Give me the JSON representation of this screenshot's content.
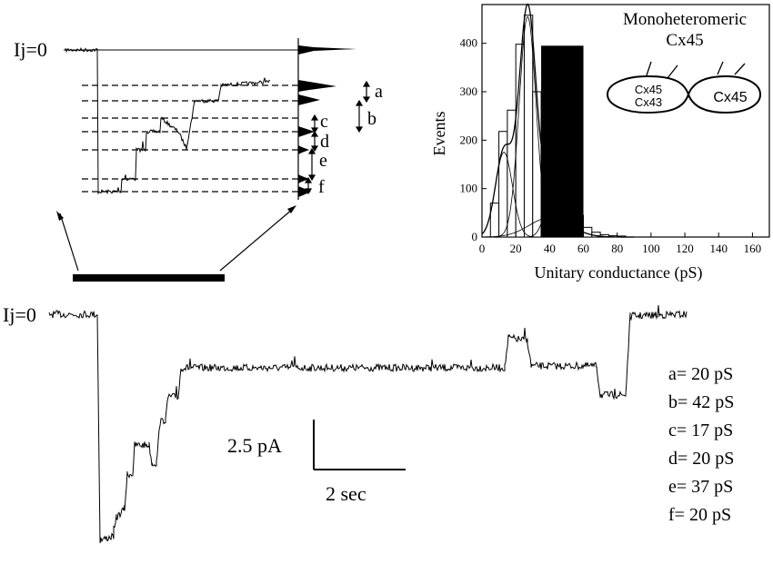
{
  "colors": {
    "ink": "#000000",
    "background": "#ffffff"
  },
  "chart_data": [
    {
      "type": "line",
      "panel": "zoomed-trace",
      "baseline_label": "Ij=0",
      "level_markers": [
        "a",
        "b",
        "c",
        "d",
        "e",
        "f"
      ]
    },
    {
      "type": "bar",
      "panel": "conductance-histogram",
      "xlabel": "Unitary conductance (pS)",
      "ylabel": "Events",
      "xlim": [
        0,
        170
      ],
      "ylim": [
        0,
        480
      ],
      "xticks": [
        "0",
        "20",
        "40",
        "60",
        "80",
        "100",
        "120",
        "140",
        "160"
      ],
      "yticks": [
        "0",
        "100",
        "200",
        "300",
        "400"
      ],
      "bin_width": 5,
      "bin_starts": [
        5,
        10,
        15,
        20,
        25,
        30,
        35,
        40,
        45,
        50,
        55,
        60,
        65,
        70,
        75,
        80
      ],
      "counts": [
        70,
        218,
        262,
        398,
        458,
        300,
        210,
        145,
        100,
        80,
        45,
        20,
        10,
        5,
        3,
        2
      ],
      "highlight_block": {
        "x_from": 35,
        "x_to": 60,
        "y": 395
      },
      "inset": {
        "title_line1": "Monoheteromeric",
        "title_line2": "Cx45",
        "left_cell_line1": "Cx45",
        "left_cell_line2": "Cx43",
        "right_cell": "Cx45"
      }
    },
    {
      "type": "line",
      "panel": "full-trace",
      "baseline_label": "Ij=0",
      "scale_bar": {
        "current_label": "2.5 pA",
        "time_label": "2 sec"
      },
      "conductances": [
        {
          "label": "a",
          "text": "a= 20 pS",
          "value_pS": 20
        },
        {
          "label": "b",
          "text": "b= 42 pS",
          "value_pS": 42
        },
        {
          "label": "c",
          "text": "c= 17 pS",
          "value_pS": 17
        },
        {
          "label": "d",
          "text": "d= 20 pS",
          "value_pS": 20
        },
        {
          "label": "e",
          "text": "e= 37 pS",
          "value_pS": 37
        },
        {
          "label": "f",
          "text": "f= 20 pS",
          "value_pS": 20
        }
      ]
    }
  ]
}
